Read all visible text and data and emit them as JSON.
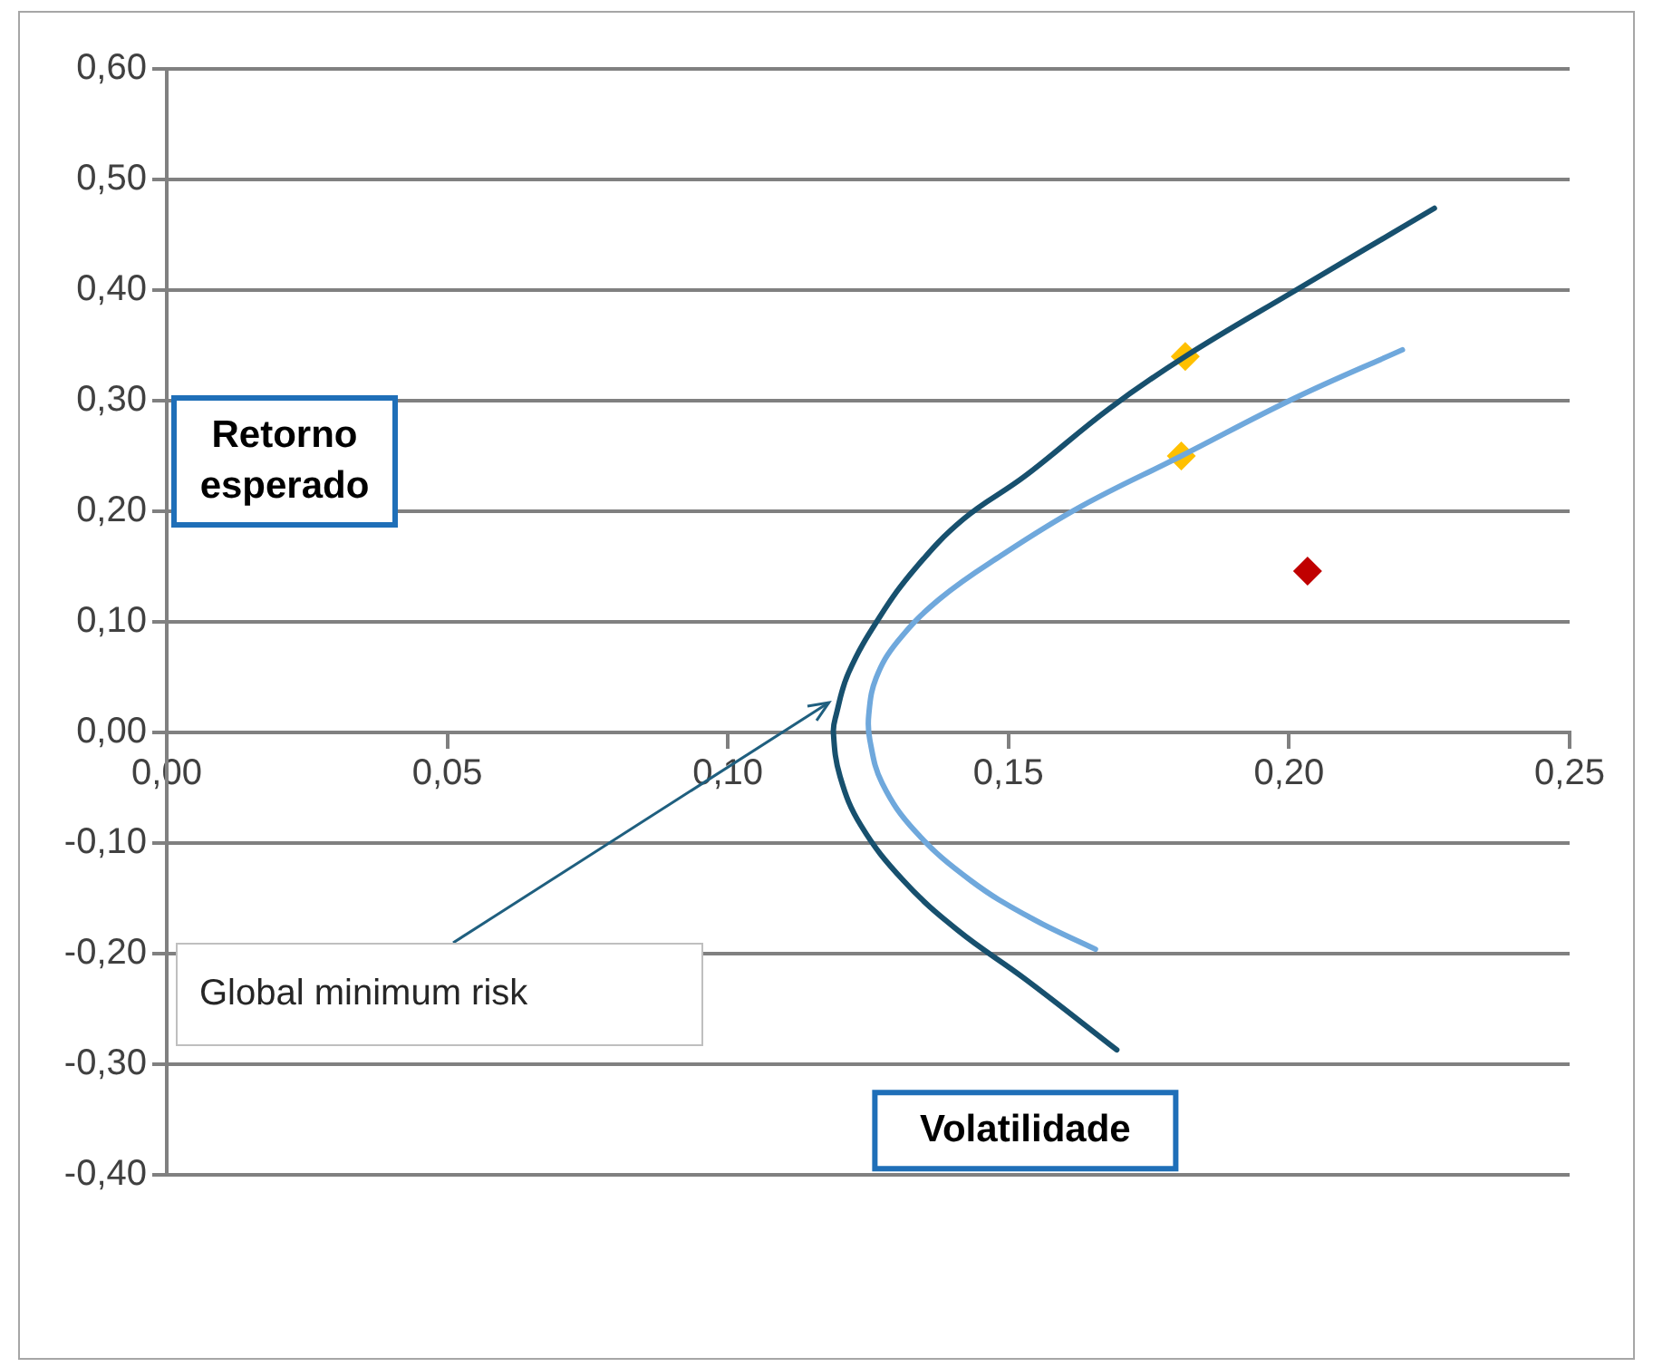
{
  "chart_data": {
    "type": "line",
    "xlabel": "Volatilidade",
    "ylabel": "Retorno esperado",
    "annotations": [
      {
        "text": "Global minimum risk",
        "x": 0.118,
        "y": 0.027
      }
    ],
    "xlim": [
      0,
      0.25
    ],
    "ylim": [
      -0.4,
      0.6
    ],
    "xticks": [
      {
        "value": 0,
        "label": "0,00"
      },
      {
        "value": 0.05,
        "label": "0,05"
      },
      {
        "value": 0.1,
        "label": "0,10"
      },
      {
        "value": 0.15,
        "label": "0,15"
      },
      {
        "value": 0.2,
        "label": "0,20"
      },
      {
        "value": 0.25,
        "label": "0,25"
      }
    ],
    "yticks": [
      {
        "value": -0.4,
        "label": "-0,40"
      },
      {
        "value": -0.3,
        "label": "-0,30"
      },
      {
        "value": -0.2,
        "label": "-0,20"
      },
      {
        "value": -0.1,
        "label": "-0,10"
      },
      {
        "value": 0,
        "label": "0,00"
      },
      {
        "value": 0.1,
        "label": "0,10"
      },
      {
        "value": 0.2,
        "label": "0,20"
      },
      {
        "value": 0.3,
        "label": "0,30"
      },
      {
        "value": 0.4,
        "label": "0,40"
      },
      {
        "value": 0.5,
        "label": "0,50"
      },
      {
        "value": 0.6,
        "label": "0,60"
      }
    ],
    "grid": "y",
    "series": [
      {
        "type": "line",
        "color": "#17506e",
        "marker": "none",
        "x": [
          0.1693,
          0.153,
          0.141,
          0.1313,
          0.1237,
          0.12,
          0.1188,
          0.1193,
          0.1215,
          0.127,
          0.1335,
          0.142,
          0.153,
          0.168,
          0.1815,
          0.2009,
          0.2259
        ],
        "values": [
          -0.287,
          -0.223,
          -0.179,
          -0.134,
          -0.084,
          -0.04,
          0,
          0.016,
          0.054,
          0.104,
          0.149,
          0.193,
          0.232,
          0.293,
          0.34,
          0.399,
          0.474
        ]
      },
      {
        "type": "line",
        "color": "#6fa8dc",
        "marker": "none",
        "x": [
          0.1655,
          0.1541,
          0.1433,
          0.1335,
          0.1275,
          0.1253,
          0.1251,
          0.1264,
          0.1302,
          0.1378,
          0.1487,
          0.1628,
          0.1808,
          0.2009,
          0.2202
        ],
        "values": [
          -0.196,
          -0.168,
          -0.134,
          -0.09,
          -0.046,
          -0.007,
          0.016,
          0.049,
          0.082,
          0.121,
          0.16,
          0.204,
          0.25,
          0.302,
          0.346
        ]
      },
      {
        "type": "scatter",
        "color": "#ffc000",
        "marker": "diamond",
        "x": [
          0.1815,
          0.1808
        ],
        "values": [
          0.34,
          0.25
        ]
      },
      {
        "type": "scatter",
        "color": "#c00000",
        "marker": "diamond",
        "x": [
          0.2033
        ],
        "values": [
          0.146
        ]
      }
    ]
  }
}
